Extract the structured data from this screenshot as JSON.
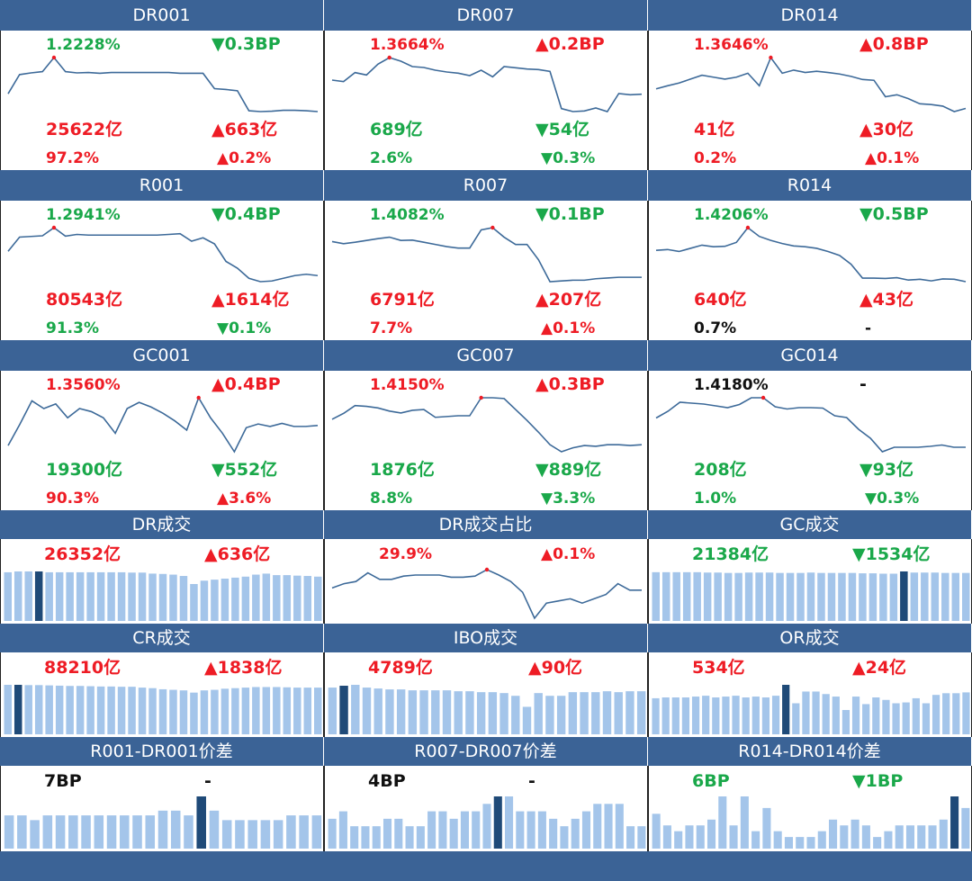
{
  "colors": {
    "header": "#3b6396",
    "up": "#ee1c25",
    "down": "#1aa84a",
    "neutral": "#111111",
    "line": "#3d6a99",
    "bar": "#a4c5ea",
    "bar_highlight": "#1f4a78",
    "marker": "#ee1c25"
  },
  "chart_data": [
    {
      "id": "DR001",
      "type": "line",
      "title": "DR001",
      "rate": "1.2228%",
      "rate_color": "down",
      "rate_chg": "▼0.3BP",
      "rate_chg_color": "down",
      "values": [
        1.16,
        1.205,
        1.209,
        1.212,
        1.245,
        1.212,
        1.209,
        1.21,
        1.208,
        1.21,
        1.21,
        1.21,
        1.21,
        1.21,
        1.21,
        1.208,
        1.208,
        1.208,
        1.172,
        1.17,
        1.167,
        1.12,
        1.118,
        1.119,
        1.121,
        1.121,
        1.12,
        1.118
      ],
      "marker": 4,
      "vol": "25622亿",
      "vol_color": "up",
      "vol_chg": "▲663亿",
      "vol_chg_color": "up",
      "share": "97.2%",
      "share_color": "up",
      "share_chg": "▲0.2%",
      "share_chg_color": "up"
    },
    {
      "id": "DR007",
      "type": "line",
      "title": "DR007",
      "rate": "1.3664%",
      "rate_color": "up",
      "rate_chg": "▲0.2BP",
      "rate_chg_color": "up",
      "values": [
        1.345,
        1.34,
        1.37,
        1.362,
        1.398,
        1.42,
        1.408,
        1.39,
        1.387,
        1.378,
        1.372,
        1.368,
        1.36,
        1.378,
        1.356,
        1.39,
        1.386,
        1.382,
        1.38,
        1.374,
        1.25,
        1.24,
        1.242,
        1.252,
        1.24,
        1.3,
        1.296,
        1.298
      ],
      "marker": 5,
      "vol": "689亿",
      "vol_color": "down",
      "vol_chg": "▼54亿",
      "vol_chg_color": "down",
      "share": "2.6%",
      "share_color": "down",
      "share_chg": "▼0.3%",
      "share_chg_color": "down"
    },
    {
      "id": "DR014",
      "type": "line",
      "title": "DR014",
      "rate": "1.3646%",
      "rate_color": "up",
      "rate_chg": "▲0.8BP",
      "rate_chg_color": "up",
      "values": [
        1.33,
        1.338,
        1.345,
        1.355,
        1.365,
        1.36,
        1.355,
        1.36,
        1.37,
        1.338,
        1.41,
        1.37,
        1.378,
        1.372,
        1.375,
        1.372,
        1.368,
        1.362,
        1.354,
        1.352,
        1.31,
        1.315,
        1.305,
        1.292,
        1.29,
        1.286,
        1.272,
        1.28
      ],
      "marker": 10,
      "vol": "41亿",
      "vol_color": "up",
      "vol_chg": "▲30亿",
      "vol_chg_color": "up",
      "share": "0.2%",
      "share_color": "up",
      "share_chg": "▲0.1%",
      "share_chg_color": "up"
    },
    {
      "id": "R001",
      "type": "line",
      "title": "R001",
      "rate": "1.2941%",
      "rate_color": "down",
      "rate_chg": "▼0.4BP",
      "rate_chg_color": "down",
      "values": [
        1.24,
        1.282,
        1.284,
        1.286,
        1.31,
        1.285,
        1.29,
        1.288,
        1.288,
        1.288,
        1.288,
        1.288,
        1.288,
        1.288,
        1.29,
        1.292,
        1.27,
        1.28,
        1.262,
        1.21,
        1.19,
        1.16,
        1.15,
        1.152,
        1.16,
        1.168,
        1.172,
        1.168
      ],
      "marker": 4,
      "vol": "80543亿",
      "vol_color": "up",
      "vol_chg": "▲1614亿",
      "vol_chg_color": "up",
      "share": "91.3%",
      "share_color": "down",
      "share_chg": "▼0.1%",
      "share_chg_color": "down"
    },
    {
      "id": "R007",
      "type": "line",
      "title": "R007",
      "rate": "1.4082%",
      "rate_color": "down",
      "rate_chg": "▼0.1BP",
      "rate_chg_color": "down",
      "values": [
        1.38,
        1.374,
        1.378,
        1.383,
        1.388,
        1.392,
        1.383,
        1.384,
        1.378,
        1.372,
        1.366,
        1.362,
        1.362,
        1.412,
        1.418,
        1.392,
        1.372,
        1.372,
        1.33,
        1.27,
        1.272,
        1.274,
        1.274,
        1.278,
        1.28,
        1.282,
        1.282,
        1.282
      ],
      "marker": 14,
      "vol": "6791亿",
      "vol_color": "up",
      "vol_chg": "▲207亿",
      "vol_chg_color": "up",
      "share": "7.7%",
      "share_color": "up",
      "share_chg": "▲0.1%",
      "share_chg_color": "up"
    },
    {
      "id": "R014",
      "type": "line",
      "title": "R014",
      "rate": "1.4206%",
      "rate_color": "down",
      "rate_chg": "▼0.5BP",
      "rate_chg_color": "down",
      "values": [
        1.375,
        1.377,
        1.372,
        1.38,
        1.388,
        1.384,
        1.385,
        1.395,
        1.432,
        1.41,
        1.4,
        1.392,
        1.386,
        1.384,
        1.38,
        1.372,
        1.362,
        1.34,
        1.305,
        1.305,
        1.304,
        1.306,
        1.3,
        1.302,
        1.298,
        1.303,
        1.302,
        1.296
      ],
      "marker": 8,
      "vol": "640亿",
      "vol_color": "up",
      "vol_chg": "▲43亿",
      "vol_chg_color": "up",
      "share": "0.7%",
      "share_color": "neutral",
      "share_chg": "-",
      "share_chg_color": "neutral"
    },
    {
      "id": "GC001",
      "type": "line",
      "title": "GC001",
      "rate": "1.3560%",
      "rate_color": "up",
      "rate_chg": "▲0.4BP",
      "rate_chg_color": "up",
      "values": [
        1.2,
        1.27,
        1.345,
        1.32,
        1.335,
        1.29,
        1.32,
        1.31,
        1.29,
        1.24,
        1.32,
        1.34,
        1.325,
        1.305,
        1.28,
        1.25,
        1.355,
        1.29,
        1.24,
        1.18,
        1.258,
        1.27,
        1.262,
        1.272,
        1.262,
        1.262,
        1.265
      ],
      "marker": 16,
      "vol": "19300亿",
      "vol_color": "down",
      "vol_chg": "▼552亿",
      "vol_chg_color": "down",
      "share": "90.3%",
      "share_color": "up",
      "share_chg": "▲3.6%",
      "share_chg_color": "up"
    },
    {
      "id": "GC007",
      "type": "line",
      "title": "GC007",
      "rate": "1.4150%",
      "rate_color": "up",
      "rate_chg": "▲0.3BP",
      "rate_chg_color": "up",
      "values": [
        1.365,
        1.38,
        1.4,
        1.398,
        1.394,
        1.386,
        1.381,
        1.388,
        1.39,
        1.37,
        1.372,
        1.374,
        1.374,
        1.42,
        1.42,
        1.418,
        1.39,
        1.362,
        1.332,
        1.3,
        1.282,
        1.292,
        1.298,
        1.296,
        1.3,
        1.3,
        1.298,
        1.3
      ],
      "marker": 13,
      "vol": "1876亿",
      "vol_color": "down",
      "vol_chg": "▼889亿",
      "vol_chg_color": "down",
      "share": "8.8%",
      "share_color": "down",
      "share_chg": "▼3.3%",
      "share_chg_color": "down"
    },
    {
      "id": "GC014",
      "type": "line",
      "title": "GC014",
      "rate": "1.4180%",
      "rate_color": "neutral",
      "rate_chg": "-",
      "rate_chg_color": "neutral",
      "values": [
        1.375,
        1.39,
        1.41,
        1.408,
        1.406,
        1.402,
        1.398,
        1.405,
        1.42,
        1.42,
        1.4,
        1.395,
        1.398,
        1.398,
        1.397,
        1.38,
        1.376,
        1.35,
        1.33,
        1.3,
        1.31,
        1.31,
        1.31,
        1.312,
        1.315,
        1.31,
        1.31
      ],
      "marker": 9,
      "vol": "208亿",
      "vol_color": "down",
      "vol_chg": "▼93亿",
      "vol_chg_color": "down",
      "share": "1.0%",
      "share_color": "down",
      "share_chg": "▼0.3%",
      "share_chg_color": "down"
    },
    {
      "id": "DR_vol",
      "type": "bar",
      "title": "DR成交",
      "v1": "26352亿",
      "v1_color": "up",
      "v2": "▲636亿",
      "v2_color": "up",
      "values": [
        29000,
        29500,
        29500,
        29500,
        29000,
        29000,
        29000,
        29000,
        29000,
        29000,
        29000,
        29000,
        28800,
        28800,
        28200,
        28000,
        27600,
        26800,
        22000,
        24000,
        24600,
        25200,
        25800,
        26400,
        27600,
        28200,
        27300,
        27300,
        27000,
        26800,
        26400
      ],
      "highlight": 3
    },
    {
      "id": "DR_share",
      "type": "line",
      "title": "DR成交占比",
      "v1": "29.9%",
      "v1_color": "up",
      "v2": "▲0.1%",
      "v2_color": "up",
      "values": [
        29.0,
        29.4,
        29.6,
        30.4,
        29.8,
        29.8,
        30.1,
        30.2,
        30.2,
        30.2,
        30.0,
        30.0,
        30.1,
        30.7,
        30.2,
        29.6,
        28.6,
        26.2,
        27.6,
        27.8,
        28.0,
        27.6,
        28.0,
        28.4,
        29.4,
        28.8,
        28.8
      ],
      "marker": 13
    },
    {
      "id": "GC_vol",
      "type": "bar",
      "title": "GC成交",
      "v1": "21384亿",
      "v1_color": "down",
      "v2": "▼1534亿",
      "v2_color": "down",
      "values": [
        26000,
        26000,
        26000,
        26000,
        26000,
        25800,
        25800,
        25600,
        25600,
        25800,
        25800,
        25800,
        25600,
        25600,
        25600,
        25800,
        25600,
        25600,
        25600,
        25600,
        25400,
        25400,
        25200,
        25200,
        26400,
        25800,
        25800,
        25800,
        25600,
        25600,
        25600
      ],
      "highlight": 24
    },
    {
      "id": "CR_vol",
      "type": "bar",
      "title": "CR成交",
      "v1": "88210亿",
      "v1_color": "up",
      "v2": "▲1838亿",
      "v2_color": "up",
      "values": [
        89000,
        89000,
        88500,
        88500,
        88000,
        87500,
        87000,
        87000,
        86500,
        86000,
        86000,
        85500,
        85500,
        84000,
        83000,
        81000,
        80000,
        79000,
        75000,
        79000,
        80000,
        82000,
        83000,
        84000,
        85000,
        85000,
        85000,
        84500,
        84000,
        84000,
        84000
      ],
      "highlight": 1
    },
    {
      "id": "IBO_vol",
      "type": "bar",
      "title": "IBO成交",
      "v1": "4789亿",
      "v1_color": "up",
      "v2": "▲90亿",
      "v2_color": "up",
      "values": [
        5100,
        5300,
        5400,
        5100,
        5000,
        4900,
        4900,
        4800,
        4800,
        4800,
        4800,
        4700,
        4700,
        4600,
        4600,
        4500,
        4200,
        3000,
        4500,
        4200,
        4200,
        4600,
        4600,
        4600,
        4700,
        4600,
        4700,
        4700
      ],
      "highlight": 1
    },
    {
      "id": "OR_vol",
      "type": "bar",
      "title": "OR成交",
      "v1": "534亿",
      "v1_color": "up",
      "v2": "▲24亿",
      "v2_color": "up",
      "values": [
        430,
        440,
        440,
        440,
        450,
        460,
        440,
        450,
        460,
        440,
        450,
        440,
        460,
        590,
        370,
        510,
        510,
        480,
        450,
        290,
        450,
        360,
        440,
        410,
        370,
        380,
        430,
        370,
        470,
        490,
        490,
        500
      ],
      "highlight": 13
    },
    {
      "id": "R001_DR001",
      "type": "bar",
      "title": "R001-DR001价差",
      "v1": "7BP",
      "v1_color": "neutral",
      "v2": "-",
      "v2_color": "neutral",
      "values": [
        7,
        7,
        6,
        7,
        7,
        7,
        7,
        7,
        7,
        7,
        7,
        7,
        8,
        8,
        7,
        11,
        8,
        6,
        6,
        6,
        6,
        6,
        7,
        7,
        7
      ],
      "highlight": 15
    },
    {
      "id": "R007_DR007",
      "type": "bar",
      "title": "R007-DR007价差",
      "v1": "4BP",
      "v1_color": "neutral",
      "v2": "-",
      "v2_color": "neutral",
      "values": [
        4,
        5,
        3,
        3,
        3,
        4,
        4,
        3,
        3,
        5,
        5,
        4,
        5,
        5,
        6,
        7,
        7,
        5,
        5,
        5,
        4,
        3,
        4,
        5,
        6,
        6,
        6,
        3,
        3
      ],
      "highlight": 15
    },
    {
      "id": "R014_DR014",
      "type": "bar",
      "title": "R014-DR014价差",
      "v1": "6BP",
      "v1_color": "down",
      "v2": "▼1BP",
      "v2_color": "down",
      "values": [
        6,
        4,
        3,
        4,
        4,
        5,
        9,
        4,
        9,
        3,
        7,
        3,
        2,
        2,
        2,
        3,
        5,
        4,
        5,
        4,
        2,
        3,
        4,
        4,
        4,
        4,
        5,
        9,
        7
      ],
      "highlight": 27
    }
  ]
}
